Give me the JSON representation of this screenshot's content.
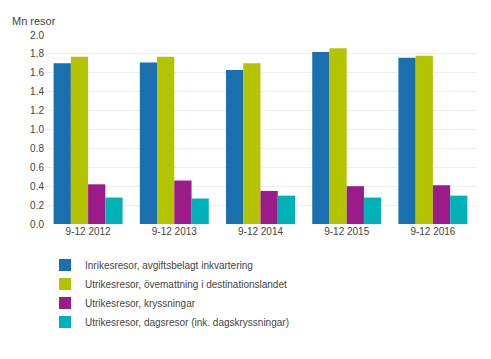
{
  "chart_data": {
    "type": "bar",
    "categories": [
      "9-12 2012",
      "9-12 2013",
      "9-12 2014",
      "9-12 2015",
      "9-12 2016"
    ],
    "series": [
      {
        "name": "Inrikesresor, avgiftsbelagt inkvartering",
        "color": "#1a6faf",
        "values": [
          1.7,
          1.71,
          1.63,
          1.82,
          1.76
        ]
      },
      {
        "name": "Utrikesresor, övemattning i destinationslandet",
        "color": "#b5c400",
        "values": [
          1.77,
          1.77,
          1.7,
          1.86,
          1.78
        ]
      },
      {
        "name": "Utrikesresor, kryssningar",
        "color": "#9b1b8a",
        "values": [
          0.42,
          0.46,
          0.35,
          0.4,
          0.41
        ]
      },
      {
        "name": "Utrikesresor, dagsresor (ink. dagskryssningar)",
        "color": "#00b2b8",
        "values": [
          0.28,
          0.27,
          0.3,
          0.28,
          0.3
        ]
      }
    ],
    "ylabel": "Mn resor",
    "ylim": [
      0.0,
      2.0
    ],
    "yticks": [
      {
        "value": 0.0,
        "label": "0.0"
      },
      0.2,
      0.4,
      0.6,
      0.8,
      {
        "value": 1.0,
        "label": "1.0"
      },
      1.2,
      1.4,
      1.6,
      1.8,
      {
        "value": 2.0,
        "label": "2.0"
      }
    ],
    "grid": true,
    "legend": "bottom left"
  }
}
